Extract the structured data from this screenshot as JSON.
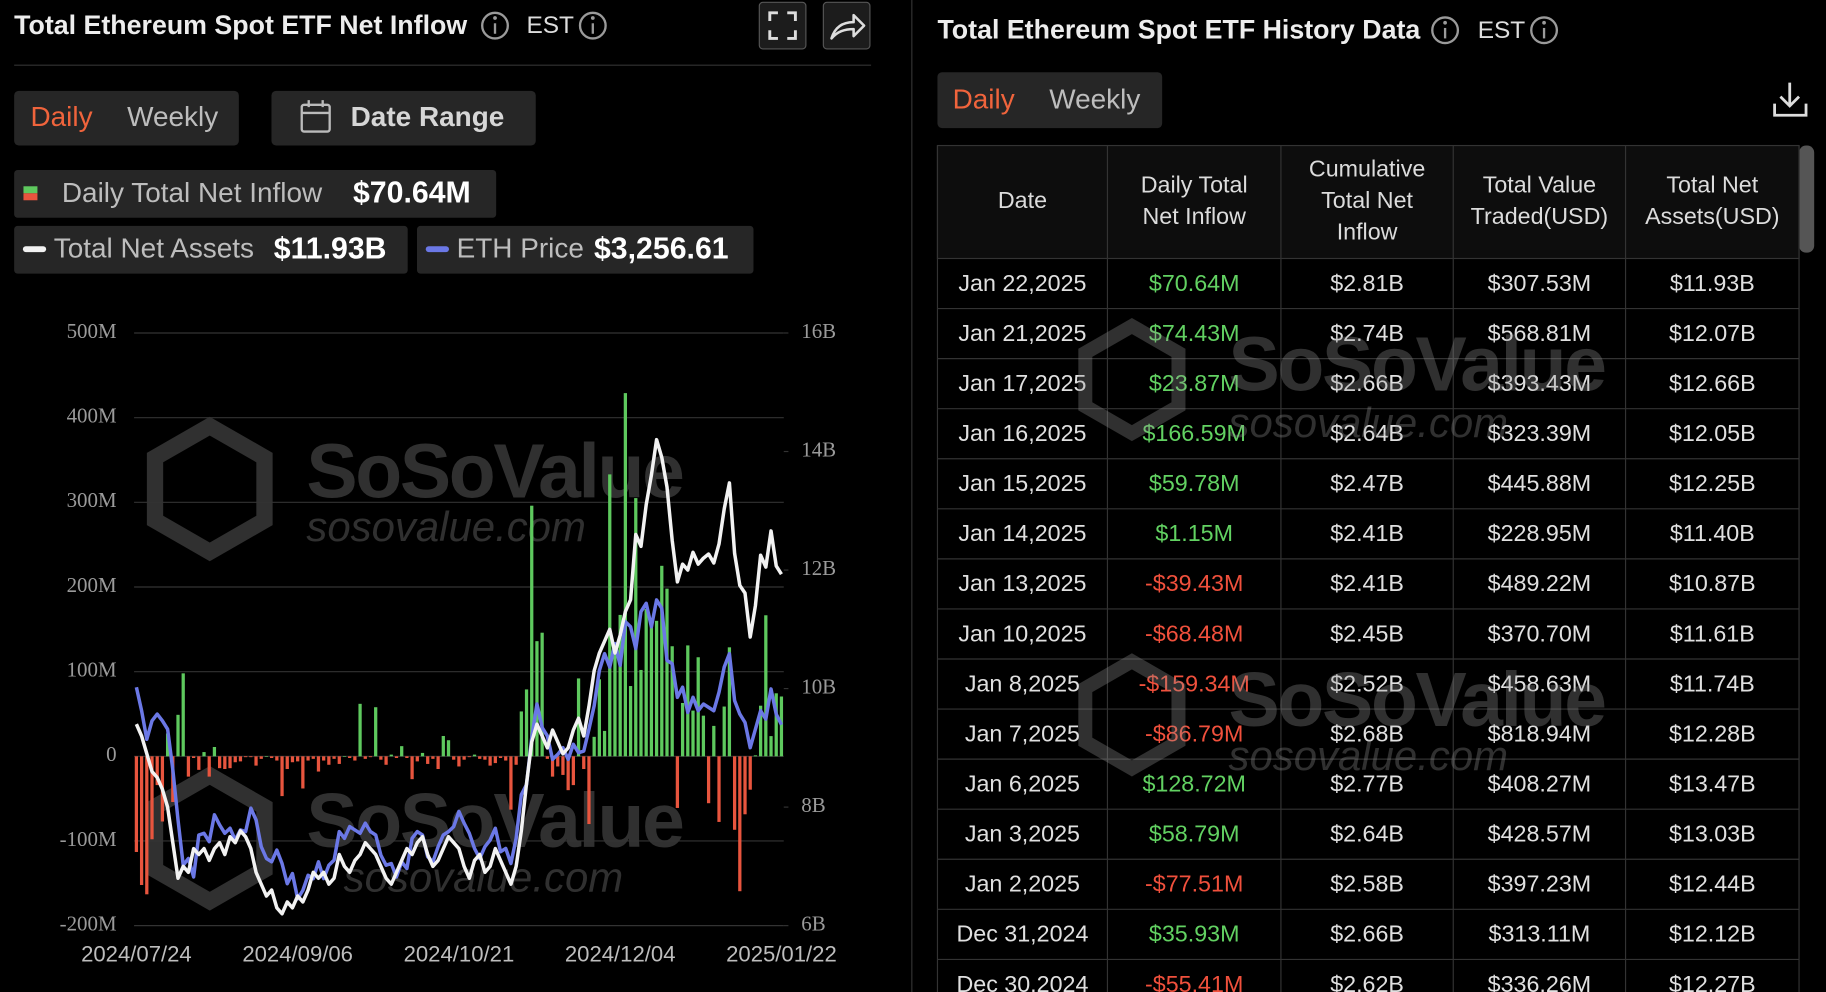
{
  "header": {
    "title": "Total Ethereum Spot ETF Net Inflow",
    "timezone": "EST",
    "tabs": [
      "Daily",
      "Weekly"
    ],
    "date_range": "Date Range"
  },
  "chart_data": {
    "type": "combo",
    "categories": [
      "2024/07/24",
      null,
      null,
      null,
      null,
      null,
      null,
      null,
      null,
      null,
      null,
      null,
      null,
      null,
      null,
      null,
      null,
      null,
      null,
      null,
      null,
      null,
      null,
      null,
      null,
      null,
      null,
      null,
      null,
      null,
      null,
      "2024/09/06",
      null,
      null,
      null,
      null,
      null,
      null,
      null,
      null,
      null,
      null,
      null,
      null,
      null,
      null,
      null,
      null,
      null,
      null,
      null,
      null,
      null,
      null,
      null,
      null,
      null,
      null,
      null,
      null,
      null,
      null,
      "2024/10/21",
      null,
      null,
      null,
      null,
      null,
      null,
      null,
      null,
      null,
      null,
      null,
      null,
      null,
      null,
      null,
      null,
      null,
      null,
      null,
      null,
      null,
      null,
      null,
      null,
      null,
      null,
      null,
      null,
      null,
      null,
      "2024/12/04",
      null,
      null,
      null,
      null,
      null,
      null,
      null,
      null,
      null,
      null,
      null,
      null,
      null,
      null,
      null,
      null,
      null,
      null,
      null,
      null,
      null,
      null,
      null,
      null,
      null,
      null,
      null,
      null,
      null,
      null,
      "2025/01/22"
    ],
    "series": [
      {
        "name": "Daily Total Net Inflow",
        "type": "bar",
        "latest_label": "$70.64M",
        "color": "#5ec95e",
        "negative_color": "#e8553e",
        "values": [
          -113,
          -152,
          -163,
          -98,
          -34,
          -77,
          27,
          -54,
          49,
          98,
          -24,
          -2,
          -16,
          5,
          -24,
          11,
          -14,
          -15,
          -14,
          -7,
          -6,
          -1,
          -1,
          -11,
          -3,
          0,
          -2,
          -5,
          -47,
          -15,
          -7,
          -6,
          -38,
          -5,
          -3,
          -18,
          -5,
          -10,
          -3,
          -9,
          0,
          -2,
          -5,
          62,
          -3,
          -1,
          58,
          -4,
          -10,
          2,
          -2,
          12,
          -2,
          -27,
          -6,
          4,
          -9,
          -3,
          -15,
          24,
          19,
          -4,
          -12,
          -4,
          -1,
          2,
          -3,
          -4,
          -11,
          -8,
          -2,
          -5,
          -63,
          -10,
          53,
          79,
          296,
          136,
          146,
          -3,
          -24,
          -12,
          -22,
          -40,
          -34,
          92,
          -15,
          -80,
          23,
          91,
          30,
          333,
          133,
          167,
          429,
          83,
          305,
          102,
          174,
          162,
          160,
          225,
          198,
          130,
          -61,
          63,
          131,
          54,
          117,
          48,
          -55.41,
          35.93,
          -77.51,
          58.79,
          128.72,
          -86.79,
          -159.34,
          -68.48,
          -39.43,
          1.15,
          59.78,
          166.59,
          23.87,
          74.43,
          70.64
        ]
      },
      {
        "name": "Total Net Assets",
        "type": "line",
        "axis": "y2",
        "latest_label": "$11.93B",
        "color": "#f2f2f2",
        "values": [
          9.4,
          9.2,
          8.9,
          8.6,
          8.5,
          8.3,
          8.0,
          7.4,
          6.8,
          7.0,
          6.9,
          7.3,
          7.2,
          7.3,
          7.1,
          7.3,
          7.4,
          7.2,
          7.5,
          7.4,
          7.6,
          7.5,
          7.3,
          6.9,
          6.7,
          6.5,
          6.6,
          6.3,
          6.2,
          6.4,
          6.3,
          6.5,
          6.4,
          6.6,
          6.9,
          6.8,
          6.9,
          6.7,
          6.8,
          7.2,
          7.0,
          6.9,
          7.1,
          7.2,
          7.4,
          7.3,
          7.2,
          7.0,
          6.8,
          6.7,
          6.9,
          7.1,
          7.3,
          7.2,
          7.4,
          7.5,
          7.2,
          7.0,
          7.1,
          7.3,
          7.5,
          7.4,
          7.3,
          7.0,
          6.8,
          7.1,
          7.2,
          6.9,
          7.0,
          7.3,
          7.1,
          6.9,
          6.7,
          7.0,
          7.6,
          8.4,
          9.1,
          9.4,
          9.2,
          9.0,
          9.3,
          9.1,
          8.9,
          9.0,
          9.3,
          9.5,
          9.2,
          9.7,
          10.3,
          10.6,
          10.8,
          11.0,
          10.6,
          10.9,
          11.3,
          11.5,
          12.6,
          12.4,
          13.1,
          13.6,
          14.2,
          13.9,
          13.4,
          12.5,
          11.8,
          12.1,
          12.0,
          12.3,
          12.1,
          12.2,
          12.27,
          12.12,
          12.44,
          13.03,
          13.47,
          12.28,
          11.74,
          11.61,
          10.87,
          11.4,
          12.25,
          12.05,
          12.66,
          12.07,
          11.93
        ]
      },
      {
        "name": "ETH Price",
        "type": "line",
        "axis": "y3",
        "latest_label": "$3,256.61",
        "color": "#6b78e6",
        "values": [
          3480,
          3340,
          3170,
          3280,
          3320,
          3280,
          3230,
          2990,
          2690,
          2420,
          2460,
          2350,
          2600,
          2610,
          2560,
          2720,
          2660,
          2610,
          2640,
          2570,
          2630,
          2620,
          2760,
          2690,
          2530,
          2460,
          2440,
          2510,
          2430,
          2310,
          2370,
          2220,
          2270,
          2360,
          2340,
          2440,
          2340,
          2420,
          2450,
          2620,
          2580,
          2650,
          2630,
          2610,
          2670,
          2620,
          2600,
          2480,
          2420,
          2430,
          2350,
          2440,
          2400,
          2580,
          2620,
          2600,
          2470,
          2440,
          2530,
          2600,
          2620,
          2650,
          2740,
          2670,
          2610,
          2520,
          2460,
          2530,
          2570,
          2640,
          2500,
          2520,
          2430,
          2580,
          2840,
          2900,
          3180,
          3380,
          3240,
          3190,
          3050,
          3080,
          3120,
          3050,
          3140,
          3090,
          3100,
          3230,
          3370,
          3580,
          3680,
          3600,
          3740,
          3610,
          3870,
          3840,
          3710,
          3930,
          3980,
          3840,
          4000,
          3950,
          3640,
          3620,
          3420,
          3480,
          3330,
          3420,
          3340,
          3380,
          3360,
          3340,
          3450,
          3600,
          3680,
          3400,
          3320,
          3270,
          3120,
          3230,
          3340,
          3290,
          3470,
          3320,
          3256.61
        ]
      }
    ],
    "ylim": [
      -200,
      500
    ],
    "yticks": [
      {
        "value": 500,
        "label": "500M"
      },
      {
        "value": 400,
        "label": "400M"
      },
      {
        "value": 300,
        "label": "300M"
      },
      {
        "value": 200,
        "label": "200M"
      },
      {
        "value": 100,
        "label": "100M"
      },
      0,
      {
        "value": -100,
        "label": "-100M"
      },
      {
        "value": -200,
        "label": "-200M"
      }
    ],
    "y2lim": [
      6,
      16
    ],
    "y2ticks": [
      {
        "value": 16,
        "label": "16B"
      },
      {
        "value": 14,
        "label": "14B"
      },
      {
        "value": 12,
        "label": "12B"
      },
      {
        "value": 10,
        "label": "10B"
      },
      {
        "value": 8,
        "label": "8B"
      },
      {
        "value": 6,
        "label": "6B"
      }
    ],
    "y3lim": [
      2060,
      5590
    ],
    "grid": true
  },
  "watermark": {
    "brand": "SoSoValue",
    "site": "sosovalue.com"
  },
  "history": {
    "title": "Total Ethereum Spot ETF History Data",
    "timezone": "EST",
    "tabs": [
      "Daily",
      "Weekly"
    ],
    "table": {
      "columns": [
        [
          "Date"
        ],
        [
          "Daily Total",
          "Net Inflow"
        ],
        [
          "Cumulative",
          "Total Net",
          "Inflow"
        ],
        [
          "Total Value",
          "Traded(USD)"
        ],
        [
          "Total Net",
          "Assets(USD)"
        ]
      ],
      "rows": [
        [
          "Jan 22,2025",
          "$70.64M",
          "$2.81B",
          "$307.53M",
          "$11.93B"
        ],
        [
          "Jan 21,2025",
          "$74.43M",
          "$2.74B",
          "$568.81M",
          "$12.07B"
        ],
        [
          "Jan 17,2025",
          "$23.87M",
          "$2.66B",
          "$393.43M",
          "$12.66B"
        ],
        [
          "Jan 16,2025",
          "$166.59M",
          "$2.64B",
          "$323.39M",
          "$12.05B"
        ],
        [
          "Jan 15,2025",
          "$59.78M",
          "$2.47B",
          "$445.88M",
          "$12.25B"
        ],
        [
          "Jan 14,2025",
          "$1.15M",
          "$2.41B",
          "$228.95M",
          "$11.40B"
        ],
        [
          "Jan 13,2025",
          "-$39.43M",
          "$2.41B",
          "$489.22M",
          "$10.87B"
        ],
        [
          "Jan 10,2025",
          "-$68.48M",
          "$2.45B",
          "$370.70M",
          "$11.61B"
        ],
        [
          "Jan 8,2025",
          "-$159.34M",
          "$2.52B",
          "$458.63M",
          "$11.74B"
        ],
        [
          "Jan 7,2025",
          "-$86.79M",
          "$2.68B",
          "$818.94M",
          "$12.28B"
        ],
        [
          "Jan 6,2025",
          "$128.72M",
          "$2.77B",
          "$408.27M",
          "$13.47B"
        ],
        [
          "Jan 3,2025",
          "$58.79M",
          "$2.64B",
          "$428.57M",
          "$13.03B"
        ],
        [
          "Jan 2,2025",
          "-$77.51M",
          "$2.58B",
          "$397.23M",
          "$12.44B"
        ],
        [
          "Dec 31,2024",
          "$35.93M",
          "$2.66B",
          "$313.11M",
          "$12.12B"
        ],
        [
          "Dec 30,2024",
          "-$55.41M",
          "$2.62B",
          "$336.26M",
          "$12.27B"
        ]
      ]
    }
  }
}
